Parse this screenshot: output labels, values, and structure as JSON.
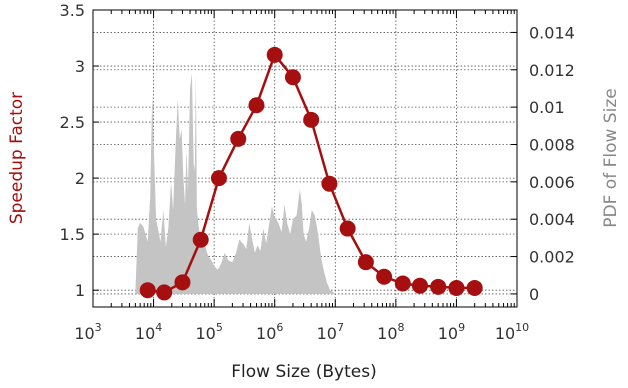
{
  "chart_data": {
    "type": "line",
    "title": "",
    "xlabel": "Flow Size (Bytes)",
    "ylabel": "Speedup Factor",
    "y2label": "PDF of Flow Size",
    "x_scale": "log10",
    "xlim": [
      1000,
      10000000000
    ],
    "ylim": [
      0.85,
      3.5
    ],
    "y2lim": [
      -0.0007,
      0.0152
    ],
    "x_ticks": [
      {
        "base": "10",
        "exp": "3"
      },
      {
        "base": "10",
        "exp": "4"
      },
      {
        "base": "10",
        "exp": "5"
      },
      {
        "base": "10",
        "exp": "6"
      },
      {
        "base": "10",
        "exp": "7"
      },
      {
        "base": "10",
        "exp": "8"
      },
      {
        "base": "10",
        "exp": "9"
      },
      {
        "base": "10",
        "exp": "10"
      }
    ],
    "y_ticks": [
      "1",
      "1.5",
      "2",
      "2.5",
      "3",
      "3.5"
    ],
    "y2_ticks": [
      "0",
      "0.002",
      "0.004",
      "0.006",
      "0.008",
      "0.01",
      "0.012",
      "0.014"
    ],
    "grid": true,
    "colors": {
      "speedup": "#a50f0f",
      "pdf": "#c4c4c4",
      "axis_text": "#333333",
      "y2_text": "#888888"
    },
    "series": [
      {
        "type": "line",
        "axis": "left",
        "x": [
          8000,
          15000,
          30000,
          60000,
          120000,
          250000,
          500000,
          1000000,
          2000000,
          4000000,
          8000000,
          16000000,
          32000000,
          64000000,
          130000000,
          250000000,
          500000000,
          1000000000,
          2000000000
        ],
        "values": [
          1.0,
          0.98,
          1.07,
          1.45,
          2.0,
          2.35,
          2.65,
          3.1,
          2.9,
          2.52,
          1.95,
          1.55,
          1.25,
          1.12,
          1.06,
          1.04,
          1.03,
          1.02,
          1.02
        ]
      },
      {
        "type": "area",
        "axis": "right",
        "x": [
          5000,
          5500,
          6000,
          6800,
          8000,
          8800,
          9500,
          11000,
          13000,
          14500,
          16000,
          17500,
          19500,
          21000,
          23000,
          25000,
          27000,
          29000,
          31000,
          33000,
          35000,
          37000,
          40000,
          43000,
          46000,
          48000,
          50000,
          52000,
          56000,
          60000,
          66000,
          72000,
          80000,
          90000,
          100000,
          115000,
          130000,
          150000,
          170000,
          200000,
          230000,
          260000,
          300000,
          340000,
          380000,
          420000,
          470000,
          520000,
          580000,
          650000,
          720000,
          800000,
          900000,
          1000000,
          1150000,
          1300000,
          1450000,
          1600000,
          1800000,
          2000000,
          2300000,
          2600000,
          2800000,
          3000000,
          3300000,
          3700000,
          4100000,
          4600000,
          5200000,
          5800000,
          6500000,
          7300000,
          8200000,
          9200000,
          10000000,
          11500000
        ],
        "values": [
          0.0,
          0.0035,
          0.0038,
          0.0036,
          0.0028,
          0.0052,
          0.0107,
          0.004,
          0.0028,
          0.0045,
          0.0025,
          0.0035,
          0.006,
          0.0045,
          0.0078,
          0.0104,
          0.0083,
          0.0088,
          0.0063,
          0.0048,
          0.0077,
          0.0055,
          0.011,
          0.0118,
          0.007,
          0.0066,
          0.0118,
          0.0045,
          0.0035,
          0.0028,
          0.003,
          0.0025,
          0.002,
          0.0018,
          0.0015,
          0.0013,
          0.0016,
          0.0022,
          0.0018,
          0.0017,
          0.0022,
          0.0029,
          0.0027,
          0.0024,
          0.0038,
          0.003,
          0.0022,
          0.0026,
          0.0023,
          0.0035,
          0.0027,
          0.0036,
          0.0047,
          0.0041,
          0.0038,
          0.0033,
          0.0048,
          0.0038,
          0.0032,
          0.004,
          0.0042,
          0.0056,
          0.0048,
          0.0032,
          0.0028,
          0.0035,
          0.0045,
          0.0042,
          0.0032,
          0.002,
          0.0012,
          0.0006,
          0.0002,
          0.0001,
          0.0,
          0.0
        ]
      }
    ]
  }
}
